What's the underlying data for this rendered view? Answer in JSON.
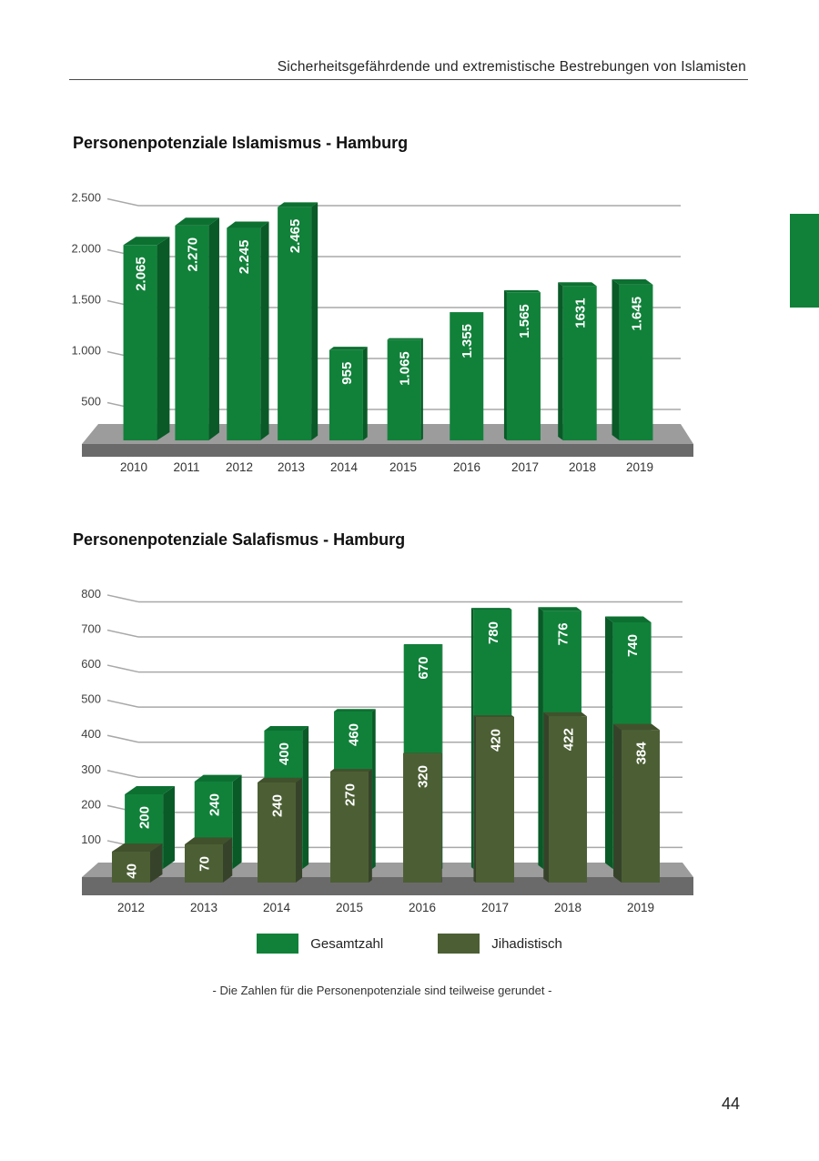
{
  "page": {
    "header": "Sicherheitsgefährdende und extremistische Bestrebungen von Islamisten",
    "footnote": "- Die Zahlen für die Personenpotenziale sind teilweise gerundet -",
    "page_number": "44"
  },
  "colors": {
    "bar_green": "#11813A",
    "bar_green_top": "#0C7031",
    "bar_green_side": "#095A27",
    "bar_olive": "#4C5F34",
    "bar_olive_top": "#41512C",
    "bar_olive_side": "#36432A",
    "floor_top": "#9C9C9C",
    "floor_front": "#6A6A6A",
    "gridline": "#A8A8A8",
    "axis_text": "#3F3F3F",
    "value_text": "#FFFFFF",
    "tab_green": "#11813A"
  },
  "chart_data": [
    {
      "type": "bar",
      "style": "3d-column",
      "title": "Personenpotenziale Islamismus - Hamburg",
      "categories": [
        "2010",
        "2011",
        "2012",
        "2013",
        "2014",
        "2015",
        "2016",
        "2017",
        "2018",
        "2019"
      ],
      "values": [
        2065,
        2270,
        2245,
        2465,
        955,
        1065,
        1355,
        1565,
        1631,
        1645
      ],
      "value_labels": [
        "2.065",
        "2.270",
        "2.245",
        "2.465",
        "955",
        "1.065",
        "1.355",
        "1.565",
        "1631",
        "1.645"
      ],
      "bar_color": "#11813A",
      "ylim": [
        0,
        2500
      ],
      "ytick_values": [
        500,
        1000,
        1500,
        2000,
        2500
      ],
      "ytick_labels": [
        "500",
        "1.000",
        "1.500",
        "2.000",
        "2.500"
      ],
      "grid": true,
      "legend_position": "none"
    },
    {
      "type": "bar",
      "style": "3d-column-overlap",
      "title": "Personenpotenziale Salafismus - Hamburg",
      "categories": [
        "2012",
        "2013",
        "2014",
        "2015",
        "2016",
        "2017",
        "2018",
        "2019"
      ],
      "series": [
        {
          "name": "Gesamtzahl",
          "color": "#11813A",
          "values": [
            200,
            240,
            400,
            460,
            670,
            780,
            776,
            740
          ],
          "value_labels": [
            "200",
            "240",
            "400",
            "460",
            "670",
            "780",
            "776",
            "740"
          ]
        },
        {
          "name": "Jihadistisch",
          "color": "#4C5F34",
          "values": [
            40,
            70,
            240,
            270,
            320,
            420,
            422,
            384
          ],
          "value_labels": [
            "40",
            "70",
            "240",
            "270",
            "320",
            "420",
            "422",
            "384"
          ]
        }
      ],
      "ylim": [
        0,
        800
      ],
      "ytick_values": [
        100,
        200,
        300,
        400,
        500,
        600,
        700,
        800
      ],
      "ytick_labels": [
        "100",
        "200",
        "300",
        "400",
        "500",
        "600",
        "700",
        "800"
      ],
      "grid": true,
      "legend_position": "bottom"
    }
  ]
}
